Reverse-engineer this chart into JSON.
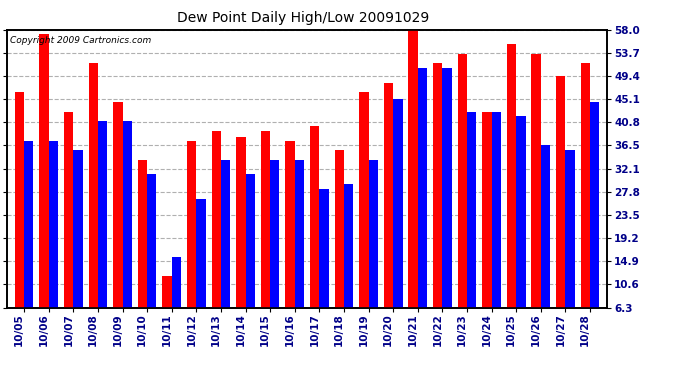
{
  "title": "Dew Point Daily High/Low 20091029",
  "copyright": "Copyright 2009 Cartronics.com",
  "categories": [
    "10/05",
    "10/06",
    "10/07",
    "10/08",
    "10/09",
    "10/10",
    "10/11",
    "10/12",
    "10/13",
    "10/14",
    "10/15",
    "10/16",
    "10/17",
    "10/18",
    "10/19",
    "10/20",
    "10/21",
    "10/22",
    "10/23",
    "10/24",
    "10/25",
    "10/26",
    "10/27",
    "10/28"
  ],
  "high_values": [
    46.4,
    57.2,
    42.8,
    51.8,
    44.6,
    33.8,
    12.2,
    37.4,
    39.2,
    38.0,
    39.2,
    37.4,
    40.1,
    35.6,
    46.4,
    48.2,
    59.0,
    51.8,
    53.6,
    42.8,
    55.4,
    53.6,
    49.4,
    51.8
  ],
  "low_values": [
    37.4,
    37.4,
    35.6,
    41.0,
    41.0,
    31.1,
    15.8,
    26.6,
    33.8,
    31.1,
    33.8,
    33.8,
    28.4,
    29.3,
    33.8,
    45.1,
    50.9,
    50.9,
    42.8,
    42.8,
    41.9,
    36.5,
    35.6,
    44.6
  ],
  "high_color": "#ff0000",
  "low_color": "#0000ff",
  "bg_color": "#ffffff",
  "plot_bg_color": "#ffffff",
  "grid_color": "#b0b0b0",
  "yticks": [
    6.3,
    10.6,
    14.9,
    19.2,
    23.5,
    27.8,
    32.1,
    36.5,
    40.8,
    45.1,
    49.4,
    53.7,
    58.0
  ],
  "ymin": 6.3,
  "ymax": 58.0,
  "bar_width": 0.38,
  "title_fontsize": 10,
  "tick_fontsize": 7.5,
  "copy_fontsize": 6.5
}
